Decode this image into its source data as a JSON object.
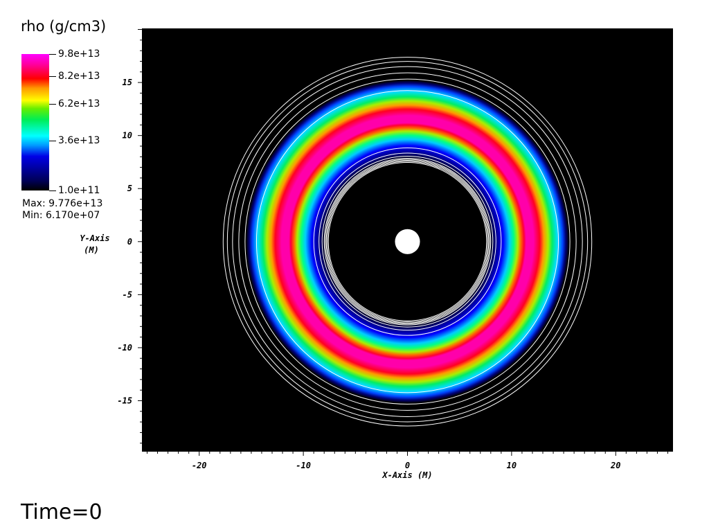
{
  "legend": {
    "variable": "rho (g/cm3)",
    "ticks": [
      "9.8e+13",
      "8.2e+13",
      "6.2e+13",
      "3.6e+13",
      "1.0e+11"
    ],
    "tick_values": [
      98000000000000.0,
      82000000000000.0,
      62000000000000.0,
      36000000000000.0,
      100000000000.0
    ],
    "max_label": "Max: 9.776e+13",
    "min_label": "Min: 6.170e+07"
  },
  "time_label": "Time=0",
  "colors": {
    "background": "#000000",
    "contour": "#ffffff",
    "central_object": "#ffffff"
  },
  "chart_data": {
    "type": "heatmap",
    "title": "",
    "xlabel": "X-Axis  (M)",
    "ylabel": "Y-Axis",
    "ylabel_unit": "(M)",
    "xlim": [
      -25.5,
      25.5
    ],
    "ylim": [
      -19.8,
      20.1
    ],
    "x_ticks": [
      -20,
      -10,
      0,
      10,
      20
    ],
    "x_tick_labels": [
      "-20",
      "-10",
      "0",
      "10",
      "20"
    ],
    "y_ticks": [
      15,
      10,
      5,
      0,
      -5,
      -10,
      -15
    ],
    "y_tick_labels": [
      "15",
      "10",
      "5",
      "0",
      "-5",
      "-10",
      "-15"
    ],
    "density_torus": {
      "inner_edge_radius": 7.9,
      "peak_radius": 11.6,
      "outer_edge_radius": 15.5,
      "peak_rho": 97760000000000.0,
      "min_rho": 61700000.0
    },
    "central_hole_radius": 1.2,
    "contour_radii": [
      7.6,
      7.7,
      7.8,
      7.9,
      8.0,
      8.2,
      8.5,
      9.0,
      14.5,
      15.6,
      16.2,
      16.8,
      17.3,
      17.7
    ],
    "grid": false
  }
}
